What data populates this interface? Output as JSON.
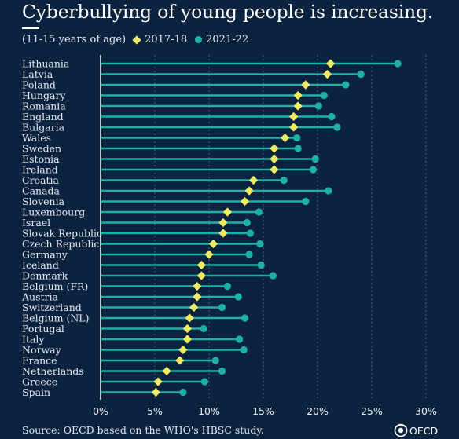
{
  "header": {
    "title": "Cyberbullying of young people is increasing.",
    "subtitle": "(11-15 years of age)"
  },
  "footer": {
    "source": "Source: OECD based on the WHO's HBSC study.",
    "logo_text": "OECD"
  },
  "colors": {
    "background": "#0c2340",
    "series_2017": "#ecec64",
    "series_2021": "#1eafa6"
  },
  "chart_data": {
    "type": "dot-plot",
    "orientation": "horizontal",
    "categories": [
      "Lithuania",
      "Latvia",
      "Poland",
      "Hungary",
      "Romania",
      "England",
      "Bulgaria",
      "Wales",
      "Sweden",
      "Estonia",
      "Ireland",
      "Croatia",
      "Canada",
      "Slovenia",
      "Luxembourg",
      "Israel",
      "Slovak Republic",
      "Czech Republic",
      "Germany",
      "Iceland",
      "Denmark",
      "Belgium (FR)",
      "Austria",
      "Switzerland",
      "Belgium (NL)",
      "Portugal",
      "Italy",
      "Norway",
      "France",
      "Netherlands",
      "Greece",
      "Spain"
    ],
    "series": [
      {
        "name": "2017-18",
        "marker": "diamond",
        "color": "#ecec64",
        "values": [
          21.2,
          20.9,
          18.9,
          18.2,
          18.2,
          17.8,
          17.8,
          17.0,
          16.0,
          16.0,
          16.0,
          14.1,
          13.7,
          13.3,
          11.7,
          11.3,
          11.3,
          10.4,
          10.0,
          9.3,
          9.3,
          8.9,
          8.9,
          8.6,
          8.2,
          8.0,
          8.0,
          7.6,
          7.3,
          6.1,
          5.3,
          5.1
        ]
      },
      {
        "name": "2021-22",
        "marker": "circle",
        "color": "#1eafa6",
        "values": [
          27.4,
          24.0,
          22.6,
          20.6,
          20.1,
          21.3,
          21.8,
          18.1,
          18.2,
          19.8,
          19.6,
          16.9,
          21.0,
          18.9,
          14.6,
          13.5,
          13.8,
          14.7,
          13.7,
          14.8,
          15.9,
          11.7,
          12.7,
          11.2,
          13.3,
          9.5,
          12.8,
          13.2,
          10.6,
          11.2,
          9.6,
          7.6
        ]
      }
    ],
    "x_ticks": [
      "0%",
      "5%",
      "10%",
      "15%",
      "20%",
      "25%",
      "30%"
    ],
    "xlim": [
      0,
      30
    ],
    "grid": "vertical-dashed",
    "legend": "top-left, inline"
  }
}
